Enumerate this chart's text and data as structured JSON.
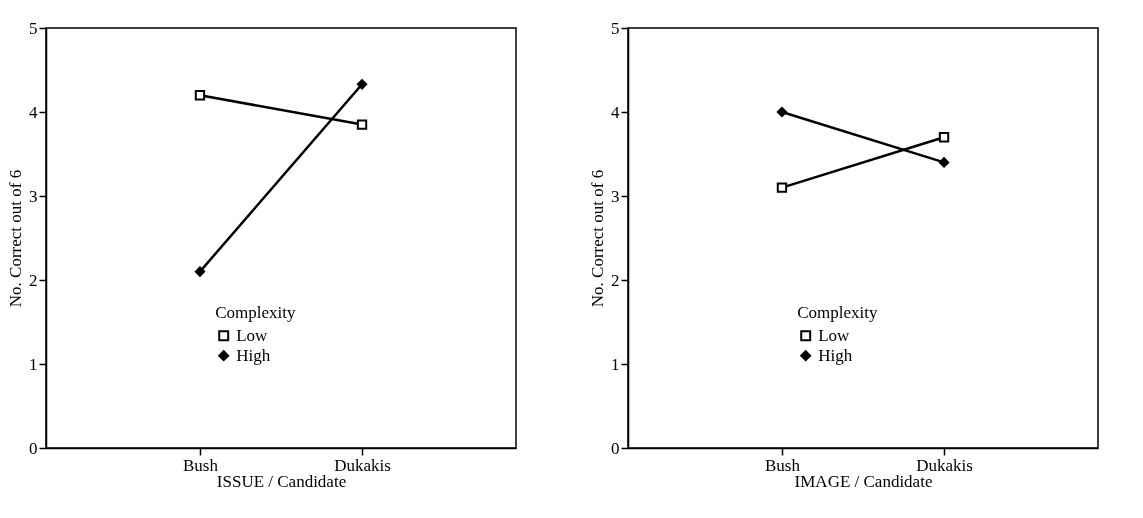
{
  "chart_data": [
    {
      "type": "line",
      "xlabel": "ISSUE / Candidate",
      "ylabel": "No. Correct out of 6",
      "categories": [
        "Bush",
        "Dukakis"
      ],
      "ylim": [
        0,
        5
      ],
      "yticks": [
        0,
        1,
        2,
        3,
        4,
        5
      ],
      "grid": false,
      "legend": "bottom",
      "legend_title": "Complexity",
      "series": [
        {
          "name": "Low",
          "color": "#000000",
          "marker": "square",
          "values": [
            4.2,
            3.85
          ]
        },
        {
          "name": "High",
          "color": "#000000",
          "marker": "diamond",
          "values": [
            2.1,
            4.33
          ]
        }
      ]
    },
    {
      "type": "line",
      "xlabel": "IMAGE / Candidate",
      "ylabel": "No. Correct out of 6",
      "categories": [
        "Bush",
        "Dukakis"
      ],
      "ylim": [
        0,
        5
      ],
      "yticks": [
        0,
        1,
        2,
        3,
        4,
        5
      ],
      "grid": false,
      "legend": "bottom",
      "legend_title": "Complexity",
      "series": [
        {
          "name": "Low",
          "color": "#000000",
          "marker": "square",
          "values": [
            3.1,
            3.7
          ]
        },
        {
          "name": "High",
          "color": "#000000",
          "marker": "diamond",
          "values": [
            4.0,
            3.4
          ]
        }
      ]
    }
  ]
}
